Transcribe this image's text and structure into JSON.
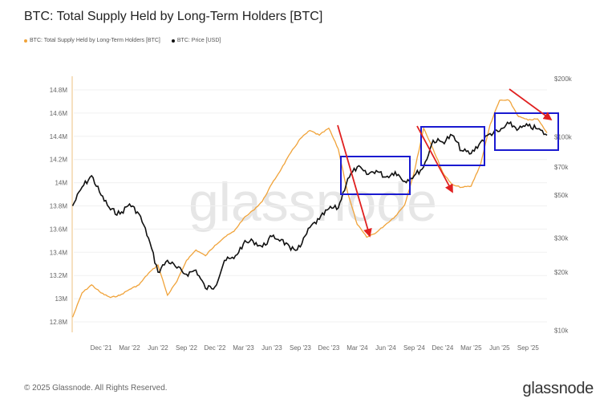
{
  "chart_data": {
    "type": "line",
    "title": "BTC: Total Supply Held by Long-Term Holders [BTC]",
    "legend_position": "top-left",
    "grid": true,
    "x": [
      "2021-09",
      "2021-10",
      "2021-11",
      "2021-12",
      "2022-01",
      "2022-02",
      "2022-03",
      "2022-04",
      "2022-05",
      "2022-06",
      "2022-07",
      "2022-08",
      "2022-09",
      "2022-10",
      "2022-11",
      "2022-12",
      "2023-01",
      "2023-02",
      "2023-03",
      "2023-04",
      "2023-05",
      "2023-06",
      "2023-07",
      "2023-08",
      "2023-09",
      "2023-10",
      "2023-11",
      "2023-12",
      "2024-01",
      "2024-02",
      "2024-03",
      "2024-04",
      "2024-05",
      "2024-06",
      "2024-07",
      "2024-08",
      "2024-09",
      "2024-10",
      "2024-11",
      "2024-12",
      "2025-01",
      "2025-02",
      "2025-03",
      "2025-04",
      "2025-05",
      "2025-06",
      "2025-07",
      "2025-08",
      "2025-09",
      "2025-10",
      "2025-11"
    ],
    "x_ticks": [
      "Dec '21",
      "Mar '22",
      "Jun '22",
      "Sep '22",
      "Dec '22",
      "Mar '23",
      "Jun '23",
      "Sep '23",
      "Dec '23",
      "Mar '24",
      "Jun '24",
      "Sep '24",
      "Dec '24",
      "Mar '25",
      "Jun '25",
      "Sep '25"
    ],
    "y_left": {
      "ticks": [
        "12.8M",
        "13M",
        "13.2M",
        "13.4M",
        "13.6M",
        "13.8M",
        "14M",
        "14.2M",
        "14.4M",
        "14.6M",
        "14.8M"
      ],
      "range": [
        12.75,
        14.9
      ]
    },
    "y_right": {
      "scale": "log",
      "ticks": [
        "$10k",
        "$20k",
        "$30k",
        "$50k",
        "$70k",
        "$100k",
        "$200k"
      ],
      "tick_values": [
        10000,
        20000,
        30000,
        50000,
        70000,
        100000,
        200000
      ],
      "range": [
        10000,
        200000
      ]
    },
    "series": [
      {
        "name": "BTC: Total Supply Held by Long-Term Holders [BTC]",
        "axis": "left",
        "color": "#f0a33a",
        "unit": "M BTC",
        "values": [
          12.84,
          13.05,
          13.12,
          13.05,
          13.01,
          13.03,
          13.08,
          13.12,
          13.22,
          13.29,
          13.03,
          13.15,
          13.33,
          13.42,
          13.37,
          13.46,
          13.53,
          13.58,
          13.69,
          13.76,
          13.84,
          13.99,
          14.12,
          14.26,
          14.38,
          14.45,
          14.41,
          14.47,
          14.29,
          13.91,
          13.64,
          13.53,
          13.57,
          13.64,
          13.71,
          13.81,
          14.09,
          14.47,
          14.29,
          14.09,
          13.98,
          13.96,
          13.97,
          14.16,
          14.5,
          14.71,
          14.71,
          14.57,
          14.54,
          14.55,
          14.43
        ]
      },
      {
        "name": "BTC: Price [USD]",
        "axis": "right",
        "color": "#111111",
        "unit": "USD",
        "values": [
          44000,
          55000,
          63000,
          50000,
          42000,
          40000,
          45000,
          40000,
          30000,
          20000,
          23000,
          21000,
          19500,
          20500,
          16500,
          16800,
          23000,
          23500,
          28000,
          29000,
          27000,
          30500,
          29500,
          26000,
          27000,
          34000,
          37500,
          42500,
          43000,
          61000,
          70000,
          64000,
          67000,
          62000,
          66000,
          59000,
          63000,
          70000,
          96000,
          94000,
          102000,
          85000,
          82000,
          94000,
          104000,
          107000,
          117000,
          110000,
          114000,
          110000,
          102000
        ]
      }
    ],
    "annotations": {
      "box_color": "#1a1ad0",
      "arrow_color": "#e02020"
    }
  },
  "watermark": "glassnode",
  "footer": {
    "copyright": "© 2025 Glassnode. All Rights Reserved.",
    "logo": "glassnode"
  }
}
